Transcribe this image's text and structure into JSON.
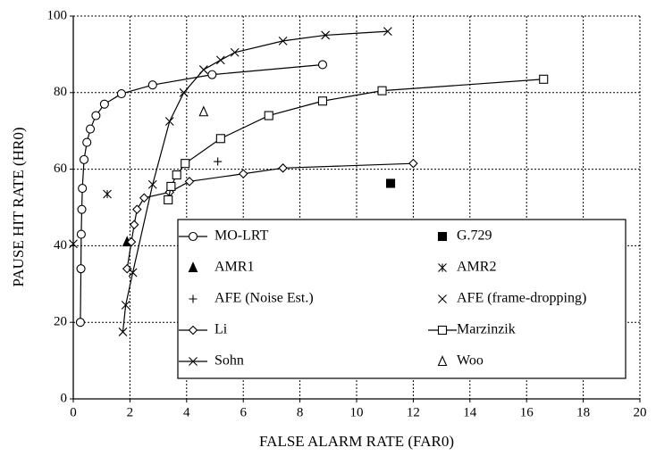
{
  "chart_data": {
    "type": "scatter",
    "xlabel": "FALSE ALARM RATE (FAR0)",
    "ylabel": "PAUSE HIT RATE (HR0)",
    "xlim": [
      0,
      20
    ],
    "xticks": [
      0,
      2,
      4,
      6,
      8,
      10,
      12,
      14,
      16,
      18,
      20
    ],
    "ylim": [
      0,
      100
    ],
    "yticks": [
      0,
      20,
      40,
      60,
      80,
      100
    ],
    "grid": true,
    "series": [
      {
        "name": "MO-LRT",
        "color": "#000000",
        "marker": "circle",
        "line": true,
        "x": [
          0.25,
          0.27,
          0.28,
          0.3,
          0.32,
          0.38,
          0.48,
          0.6,
          0.8,
          1.1,
          1.7,
          2.8,
          4.9,
          8.8
        ],
        "values": [
          20,
          34,
          43,
          49.5,
          55,
          62.5,
          67,
          70.5,
          74,
          77,
          79.7,
          82,
          84.7,
          87.3
        ]
      },
      {
        "name": "G.729",
        "color": "#000000",
        "marker": "square-filled",
        "line": false,
        "x": [
          11.2
        ],
        "values": [
          56.3
        ]
      },
      {
        "name": "AMR1",
        "color": "#000000",
        "marker": "triangle-filled",
        "line": false,
        "x": [
          1.9
        ],
        "values": [
          41
        ]
      },
      {
        "name": "AMR2",
        "color": "#000000",
        "marker": "asterisk",
        "line": false,
        "x": [
          1.2
        ],
        "values": [
          53.5
        ]
      },
      {
        "name": "AFE (Noise Est.)",
        "color": "#000000",
        "marker": "plus",
        "line": false,
        "x": [
          5.1
        ],
        "values": [
          62
        ]
      },
      {
        "name": "AFE (frame-dropping)",
        "color": "#000000",
        "marker": "cross",
        "line": false,
        "x": [
          0
        ],
        "values": [
          40.5
        ]
      },
      {
        "name": "Li",
        "color": "#000000",
        "marker": "diamond",
        "line": true,
        "x": [
          1.9,
          2.05,
          2.15,
          2.25,
          2.5,
          3.4,
          4.1,
          6,
          7.4,
          12
        ],
        "values": [
          34,
          41,
          45.5,
          49.5,
          52.5,
          54,
          56.8,
          58.8,
          60.3,
          61.5
        ]
      },
      {
        "name": "Marzinzik",
        "color": "#000000",
        "marker": "square",
        "line": true,
        "x": [
          3.35,
          3.45,
          3.65,
          3.95,
          5.2,
          6.9,
          8.8,
          10.9,
          16.6
        ],
        "values": [
          52,
          55.5,
          58.5,
          61.5,
          68,
          74,
          77.8,
          80.5,
          83.5
        ]
      },
      {
        "name": "Sohn",
        "color": "#000000",
        "marker": "cross",
        "line": true,
        "x": [
          1.75,
          1.85,
          2.1,
          2.8,
          3.4,
          3.9,
          4.6,
          5.2,
          5.7,
          7.4,
          8.9,
          11.1
        ],
        "values": [
          17.5,
          24.5,
          33,
          56,
          72.5,
          80,
          86,
          88.5,
          90.5,
          93.5,
          95,
          96
        ]
      },
      {
        "name": "Woo",
        "color": "#000000",
        "marker": "triangle",
        "line": false,
        "x": [
          4.6
        ],
        "values": [
          75
        ]
      }
    ]
  }
}
